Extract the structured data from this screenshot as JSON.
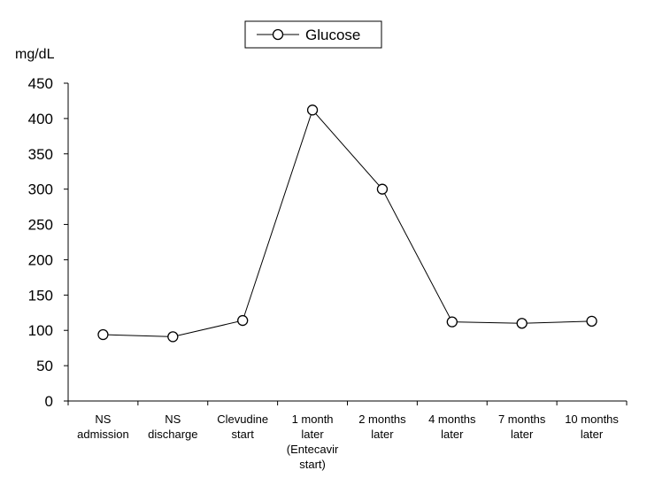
{
  "chart_data": {
    "type": "line",
    "title": "",
    "xlabel": "",
    "ylabel": "mg/dL",
    "ylim": [
      0,
      450
    ],
    "yticks": [
      0,
      50,
      100,
      150,
      200,
      250,
      300,
      350,
      400,
      450
    ],
    "grid": false,
    "legend_position": "top-center",
    "categories": [
      [
        "NS",
        "admission"
      ],
      [
        "NS",
        "discharge"
      ],
      [
        "Clevudine",
        "start"
      ],
      [
        "1 month",
        "later",
        "(Entecavir",
        "start)"
      ],
      [
        "2 months",
        "later"
      ],
      [
        "4 months",
        "later"
      ],
      [
        "7 months",
        "later"
      ],
      [
        "10 months",
        "later"
      ]
    ],
    "series": [
      {
        "name": "Glucose",
        "color": "#000000",
        "marker": "open-circle",
        "values": [
          94,
          91,
          114,
          412,
          300,
          112,
          110,
          113
        ]
      }
    ]
  }
}
